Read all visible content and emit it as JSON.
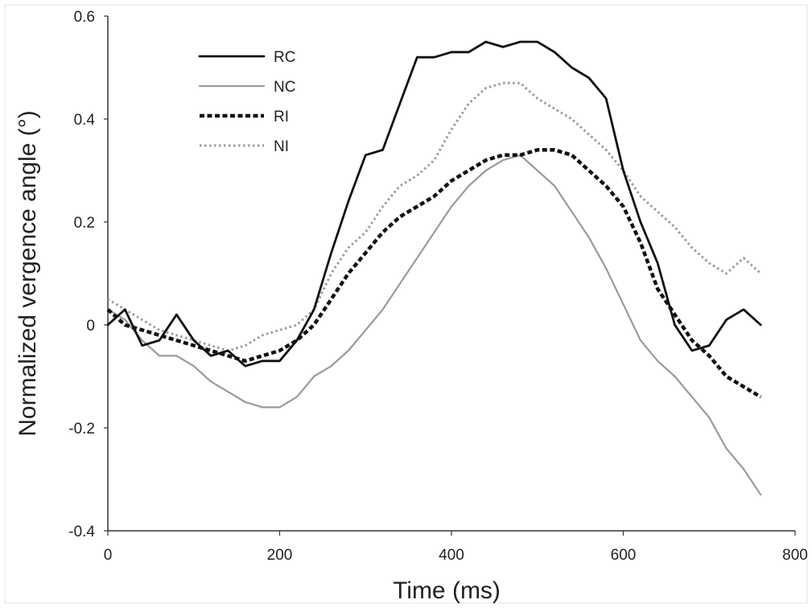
{
  "chart_data": {
    "type": "line",
    "title": "",
    "xlabel": "Time (ms)",
    "ylabel": "Normalized vergence angle (°)",
    "xlim": [
      0,
      800
    ],
    "ylim": [
      -0.4,
      0.6
    ],
    "xticks": [
      0,
      200,
      400,
      600,
      800
    ],
    "yticks": [
      -0.4,
      -0.2,
      0,
      0.2,
      0.4,
      0.6
    ],
    "xtick_labels": [
      "0",
      "200",
      "400",
      "600",
      "800"
    ],
    "ytick_labels": [
      "-0.4",
      "-0.2",
      "0",
      "0.2",
      "0.4",
      "0.6"
    ],
    "grid": false,
    "legend_position": "top-left",
    "x": [
      0,
      20,
      40,
      60,
      80,
      100,
      120,
      140,
      160,
      180,
      200,
      220,
      240,
      260,
      280,
      300,
      320,
      340,
      360,
      380,
      400,
      420,
      440,
      460,
      480,
      500,
      520,
      540,
      560,
      580,
      600,
      620,
      640,
      660,
      680,
      700,
      720,
      740,
      760
    ],
    "series": [
      {
        "name": "RC",
        "style": "solid",
        "color": "#111111",
        "values": [
          0.0,
          0.03,
          -0.04,
          -0.03,
          0.02,
          -0.03,
          -0.06,
          -0.05,
          -0.08,
          -0.07,
          -0.07,
          -0.03,
          0.03,
          0.14,
          0.24,
          0.33,
          0.34,
          0.43,
          0.52,
          0.52,
          0.53,
          0.53,
          0.55,
          0.54,
          0.55,
          0.55,
          0.53,
          0.5,
          0.48,
          0.44,
          0.3,
          0.2,
          0.12,
          0.0,
          -0.05,
          -0.04,
          0.01,
          0.03,
          0.0
        ]
      },
      {
        "name": "NC",
        "style": "solid",
        "color": "#9a9a9a",
        "values": [
          0.03,
          0.01,
          -0.03,
          -0.06,
          -0.06,
          -0.08,
          -0.11,
          -0.13,
          -0.15,
          -0.16,
          -0.16,
          -0.14,
          -0.1,
          -0.08,
          -0.05,
          -0.01,
          0.03,
          0.08,
          0.13,
          0.18,
          0.23,
          0.27,
          0.3,
          0.32,
          0.33,
          0.3,
          0.27,
          0.22,
          0.17,
          0.11,
          0.04,
          -0.03,
          -0.07,
          -0.1,
          -0.14,
          -0.18,
          -0.24,
          -0.28,
          -0.33
        ]
      },
      {
        "name": "RI",
        "style": "dashed",
        "color": "#111111",
        "values": [
          0.03,
          0.0,
          -0.01,
          -0.02,
          -0.03,
          -0.04,
          -0.05,
          -0.06,
          -0.07,
          -0.06,
          -0.05,
          -0.03,
          0.0,
          0.05,
          0.1,
          0.14,
          0.18,
          0.21,
          0.23,
          0.25,
          0.28,
          0.3,
          0.32,
          0.33,
          0.33,
          0.34,
          0.34,
          0.33,
          0.3,
          0.27,
          0.23,
          0.16,
          0.07,
          0.02,
          -0.03,
          -0.06,
          -0.1,
          -0.12,
          -0.14
        ]
      },
      {
        "name": "NI",
        "style": "dotted",
        "color": "#9a9a9a",
        "values": [
          0.05,
          0.03,
          0.01,
          -0.01,
          -0.02,
          -0.03,
          -0.04,
          -0.05,
          -0.04,
          -0.02,
          -0.01,
          0.0,
          0.03,
          0.1,
          0.15,
          0.18,
          0.23,
          0.27,
          0.29,
          0.32,
          0.38,
          0.43,
          0.46,
          0.47,
          0.47,
          0.44,
          0.42,
          0.4,
          0.37,
          0.34,
          0.3,
          0.25,
          0.22,
          0.19,
          0.15,
          0.12,
          0.1,
          0.13,
          0.1
        ]
      }
    ]
  }
}
